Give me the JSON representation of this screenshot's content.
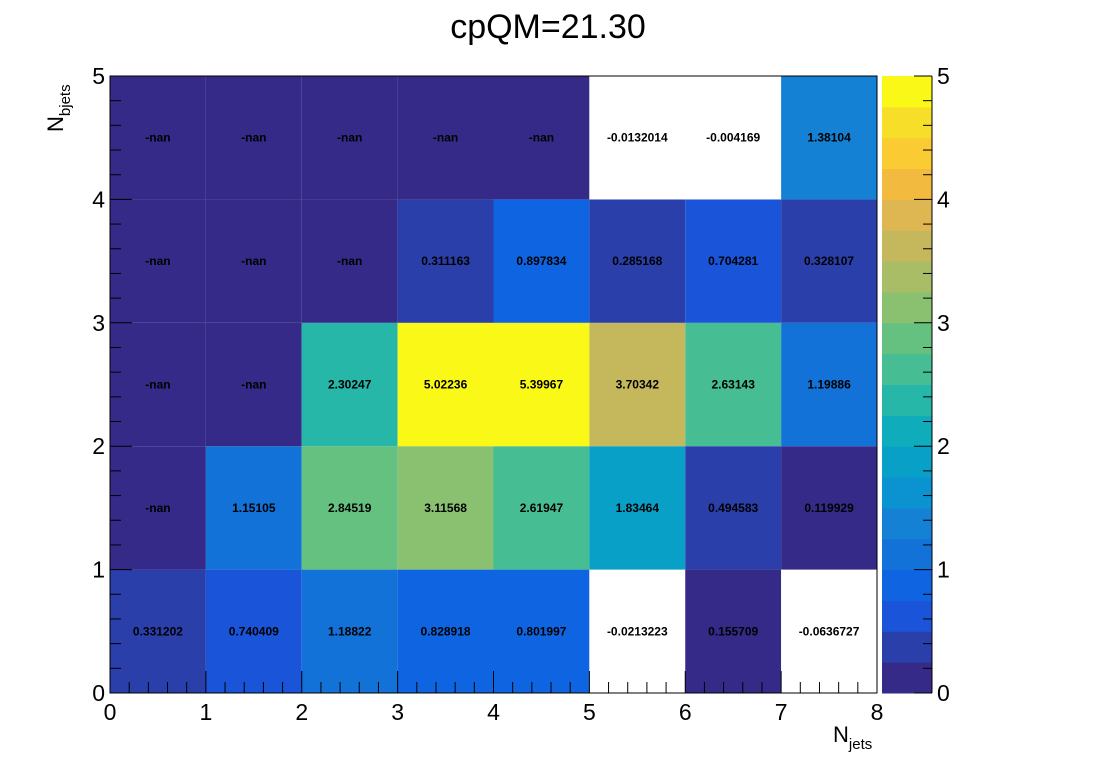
{
  "chart_data": {
    "type": "heatmap",
    "title": "cpQM=21.30",
    "xlabel": {
      "main": "N",
      "sub": "jets"
    },
    "ylabel": {
      "main": "N",
      "sub": "bjets"
    },
    "x_edges": [
      0,
      1,
      2,
      3,
      4,
      5,
      6,
      7,
      8
    ],
    "y_edges": [
      0,
      1,
      2,
      3,
      4,
      5
    ],
    "x_ticks": [
      "0",
      "1",
      "2",
      "3",
      "4",
      "5",
      "6",
      "7",
      "8"
    ],
    "y_ticks": [
      "0",
      "1",
      "2",
      "3",
      "4",
      "5"
    ],
    "zlim": [
      0,
      5
    ],
    "z_ticks": [
      "0",
      "1",
      "2",
      "3",
      "4",
      "5"
    ],
    "rows_bottom_to_top": [
      {
        "labels": [
          "0.331202",
          "0.740409",
          "1.18822",
          "0.828918",
          "0.801997",
          "-0.0213223",
          "0.155709",
          "-0.0636727"
        ],
        "values": [
          0.331202,
          0.740409,
          1.18822,
          0.828918,
          0.801997,
          -0.0213223,
          0.155709,
          -0.0636727
        ]
      },
      {
        "labels": [
          "-nan",
          "1.15105",
          "2.84519",
          "3.11568",
          "2.61947",
          "1.83464",
          "0.494583",
          "0.119929"
        ],
        "values": [
          null,
          1.15105,
          2.84519,
          3.11568,
          2.61947,
          1.83464,
          0.494583,
          0.119929
        ]
      },
      {
        "labels": [
          "-nan",
          "-nan",
          "2.30247",
          "5.02236",
          "5.39967",
          "3.70342",
          "2.63143",
          "1.19886"
        ],
        "values": [
          null,
          null,
          2.30247,
          5.02236,
          5.39967,
          3.70342,
          2.63143,
          1.19886
        ]
      },
      {
        "labels": [
          "-nan",
          "-nan",
          "-nan",
          "0.311163",
          "0.897834",
          "0.285168",
          "0.704281",
          "0.328107"
        ],
        "values": [
          null,
          null,
          null,
          0.311163,
          0.897834,
          0.285168,
          0.704281,
          0.328107
        ]
      },
      {
        "labels": [
          "-nan",
          "-nan",
          "-nan",
          "-nan",
          "-nan",
          "-0.0132014",
          "-0.004169",
          "1.38104"
        ],
        "values": [
          null,
          null,
          null,
          null,
          null,
          -0.0132014,
          -0.004169,
          1.38104
        ]
      }
    ],
    "nan_color": "#352a87",
    "below_min_color": "#ffffff",
    "palette": [
      "#352a87",
      "#2a3fa9",
      "#1954d9",
      "#0f65e1",
      "#1372d8",
      "#1481d5",
      "#0b92d0",
      "#08a0c6",
      "#0fadbb",
      "#26b7a9",
      "#46bd93",
      "#65c17f",
      "#8ac171",
      "#a9bd66",
      "#c5b85c",
      "#deb752",
      "#f2ba3e",
      "#fbcb33",
      "#f7de29",
      "#f9f816"
    ]
  }
}
